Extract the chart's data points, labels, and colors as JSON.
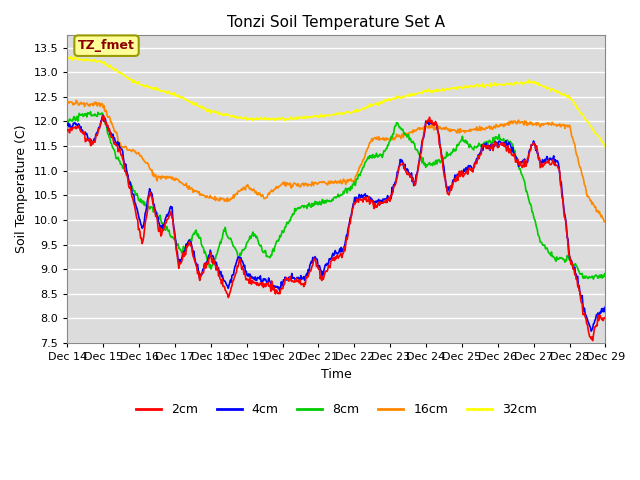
{
  "title": "Tonzi Soil Temperature Set A",
  "xlabel": "Time",
  "ylabel": "Soil Temperature (C)",
  "annotation": "TZ_fmet",
  "ylim": [
    7.5,
    13.75
  ],
  "series_colors": {
    "2cm": "#ff0000",
    "4cm": "#0000ff",
    "8cm": "#00cc00",
    "16cm": "#ff8800",
    "32cm": "#ffff00"
  },
  "series_labels": [
    "2cm",
    "4cm",
    "8cm",
    "16cm",
    "32cm"
  ],
  "tick_labels": [
    "Dec 14",
    "Dec 15",
    "Dec 16",
    "Dec 17",
    "Dec 18",
    "Dec 19",
    "Dec 20",
    "Dec 21",
    "Dec 22",
    "Dec 23",
    "Dec 24",
    "Dec 25",
    "Dec 26",
    "Dec 27",
    "Dec 28",
    "Dec 29"
  ],
  "bg_color": "#dcdcdc",
  "grid_color": "#ffffff"
}
